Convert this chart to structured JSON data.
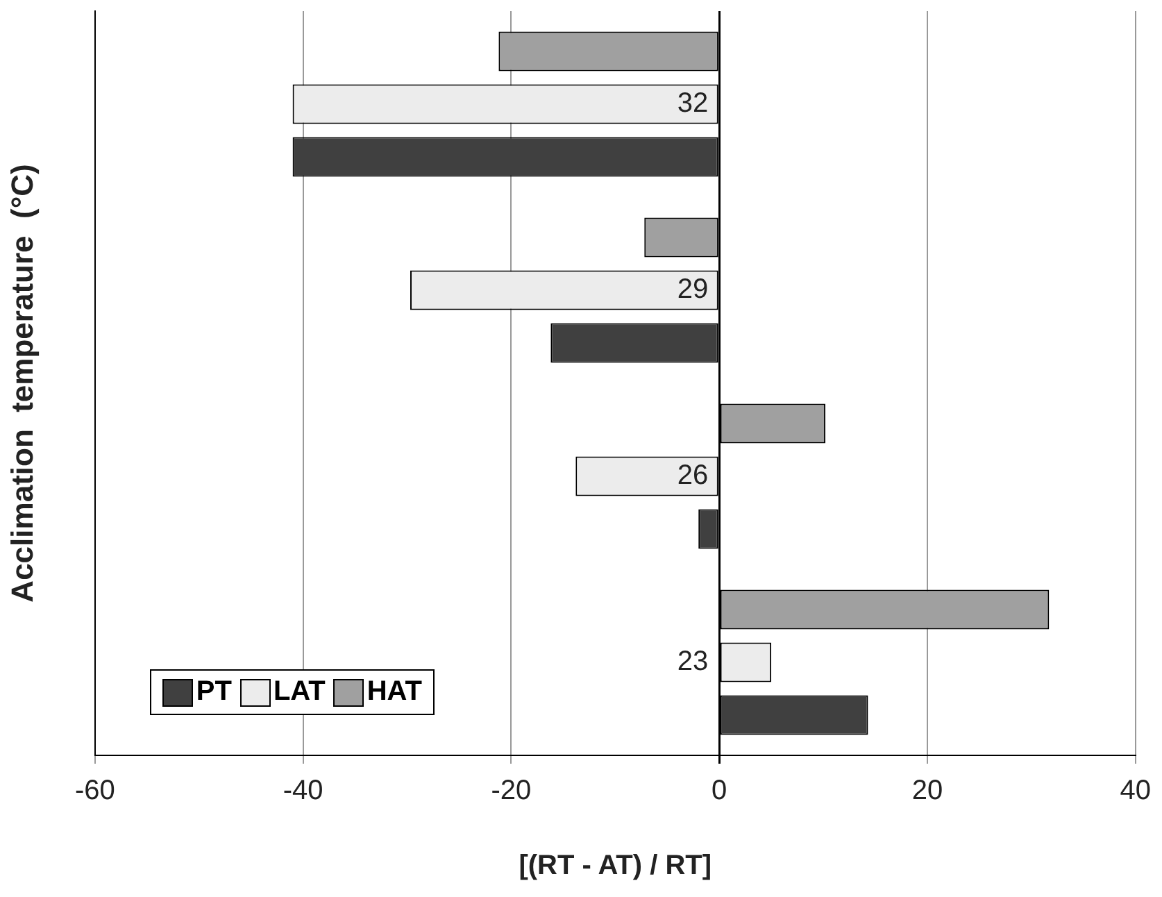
{
  "chart_data": {
    "type": "bar",
    "orientation": "horizontal",
    "xlabel": "[(RT - AT) / RT]",
    "ylabel": "Acclimation  temperature  (°C)",
    "categories": [
      "32",
      "29",
      "26",
      "23"
    ],
    "series": [
      {
        "name": "PT",
        "color": "#404040",
        "values": [
          -41,
          -16.2,
          -2,
          14.3
        ]
      },
      {
        "name": "LAT",
        "color": "#ececec",
        "values": [
          -41,
          -29.7,
          -13.8,
          5
        ]
      },
      {
        "name": "HAT",
        "color": "#a0a0a0",
        "values": [
          -21.2,
          -7.2,
          10.2,
          31.7
        ]
      }
    ],
    "xlim": [
      -60,
      40
    ],
    "xticks": [
      -60,
      -40,
      -20,
      0,
      20,
      40
    ],
    "grid": "x",
    "legend": "bottom left"
  }
}
